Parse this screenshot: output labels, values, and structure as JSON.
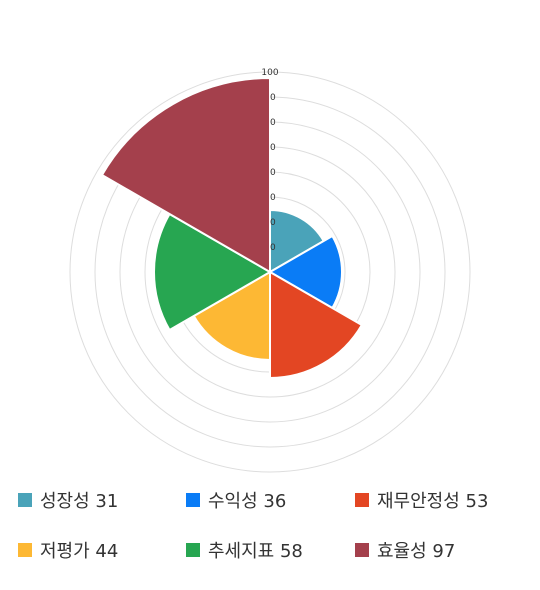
{
  "chart_data": {
    "type": "polar-area",
    "r_range": [
      0,
      100
    ],
    "r_tick_labels": [
      "100",
      "0",
      "0",
      "0",
      "0",
      "0",
      "0",
      "0"
    ],
    "grid": true,
    "legend_position": "bottom",
    "series": [
      {
        "name": "성장성",
        "value": 31,
        "color": "#4aa3b9"
      },
      {
        "name": "수익성",
        "value": 36,
        "color": "#0a7cf6"
      },
      {
        "name": "재무안정성",
        "value": 53,
        "color": "#e34623"
      },
      {
        "name": "저평가",
        "value": 44,
        "color": "#fdb834"
      },
      {
        "name": "추세지표",
        "value": 58,
        "color": "#27a651"
      },
      {
        "name": "효율성",
        "value": 97,
        "color": "#a4404c"
      }
    ],
    "legend_labels": [
      "성장성 31",
      "수익성 36",
      "재무안정성 53",
      "저평가 44",
      "추세지표 58",
      "효율성 97"
    ]
  }
}
